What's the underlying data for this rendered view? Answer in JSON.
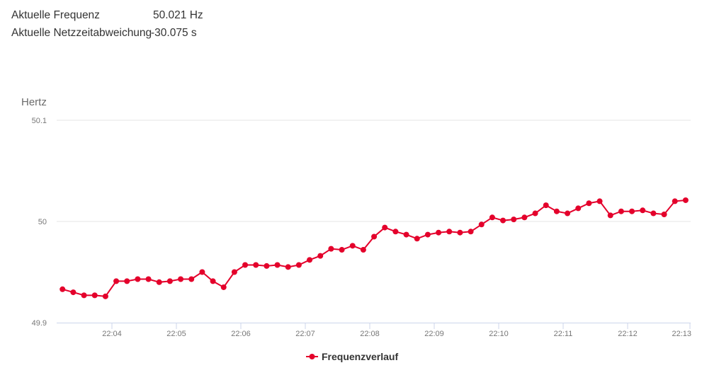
{
  "info": {
    "frequency_label": "Aktuelle Frequenz",
    "frequency_value": "50.021 Hz",
    "deviation_label": "Aktuelle Netzzeitabweichung",
    "deviation_value": "-30.075 s"
  },
  "colors": {
    "series": "#e4002b",
    "grid": "#e6e6e6",
    "axis": "#ccd6eb"
  },
  "chart_data": {
    "type": "line",
    "title": "",
    "xlabel": "",
    "ylabel": "Hertz",
    "ylim": [
      49.9,
      50.1
    ],
    "yticks": [
      "49.9",
      "50",
      "50.1"
    ],
    "xticks": [
      "22:04",
      "22:05",
      "22:06",
      "22:07",
      "22:08",
      "22:09",
      "22:10",
      "22:11",
      "22:12",
      "22:13"
    ],
    "x_start": "22:03:14",
    "x_step_seconds": 10,
    "legend": "bottom-center",
    "series": [
      {
        "name": "Frequenzverlauf",
        "values": [
          49.933,
          49.93,
          49.927,
          49.927,
          49.926,
          49.941,
          49.941,
          49.943,
          49.943,
          49.94,
          49.941,
          49.943,
          49.943,
          49.95,
          49.941,
          49.935,
          49.95,
          49.957,
          49.957,
          49.956,
          49.957,
          49.955,
          49.957,
          49.962,
          49.966,
          49.973,
          49.972,
          49.976,
          49.972,
          49.985,
          49.994,
          49.99,
          49.987,
          49.983,
          49.987,
          49.989,
          49.99,
          49.989,
          49.99,
          49.997,
          50.004,
          50.001,
          50.002,
          50.004,
          50.008,
          50.016,
          50.01,
          50.008,
          50.013,
          50.018,
          50.02,
          50.006,
          50.01,
          50.01,
          50.011,
          50.008,
          50.007,
          50.02,
          50.021
        ]
      }
    ]
  }
}
